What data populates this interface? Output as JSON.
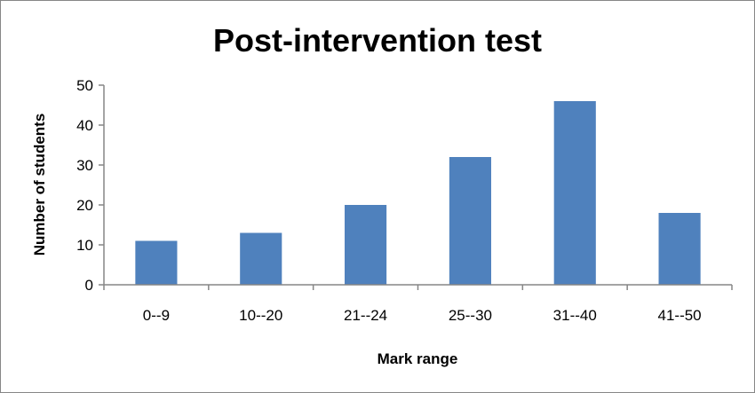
{
  "chart_data": {
    "type": "bar",
    "title": "Post-intervention test",
    "xlabel": "Mark range",
    "ylabel": "Number of students",
    "categories": [
      "0--9",
      "10--20",
      "21--24",
      "25--30",
      "31--40",
      "41--50"
    ],
    "values": [
      11,
      13,
      20,
      32,
      46,
      18
    ],
    "ylim": [
      0,
      50
    ],
    "yticks": [
      "0",
      "10",
      "20",
      "30",
      "40",
      "50"
    ],
    "grid": false,
    "legend": "none",
    "bar_color": "#4F81BD",
    "axis_color": "#868686"
  }
}
